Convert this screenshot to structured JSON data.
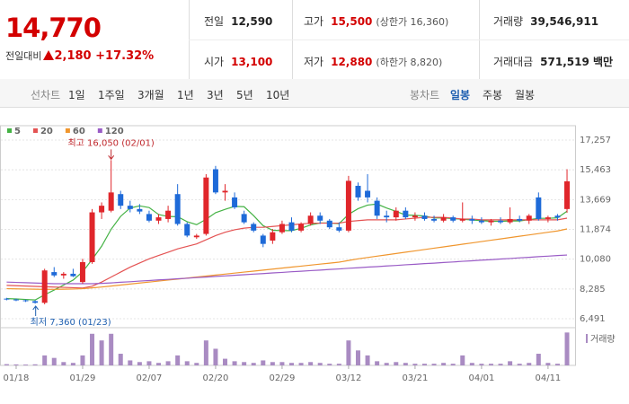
{
  "header": {
    "price": "14,770",
    "change_label": "전일대비",
    "change": "2,180",
    "change_pct": "+17.32%"
  },
  "stats": [
    {
      "label": "전일",
      "value": "12,590"
    },
    {
      "label": "고가",
      "value": "15,500",
      "extra": "(상한가 16,360)"
    },
    {
      "label": "거래량",
      "value": "39,546,911"
    },
    {
      "label": "시가",
      "value": "13,100"
    },
    {
      "label": "저가",
      "value": "12,880",
      "extra": "(하한가 8,820)"
    },
    {
      "label": "거래대금",
      "value": "571,519 백만"
    }
  ],
  "toolbar": {
    "line_label": "선차트",
    "line_options": [
      "1일",
      "1주일",
      "3개월",
      "1년",
      "3년",
      "5년",
      "10년"
    ],
    "candle_label": "봉차트",
    "candle_options": [
      "일봉",
      "주봉",
      "월봉"
    ],
    "selected": "일봉"
  },
  "chart_data": {
    "type": "candlestick",
    "categories": [
      null,
      "01/18",
      null,
      null,
      null,
      null,
      null,
      null,
      "01/29",
      null,
      null,
      null,
      null,
      null,
      null,
      "02/07",
      null,
      null,
      null,
      null,
      null,
      null,
      "02/20",
      null,
      null,
      null,
      null,
      null,
      null,
      "02/29",
      null,
      null,
      null,
      null,
      null,
      null,
      "03/12",
      null,
      null,
      null,
      null,
      null,
      null,
      "03/21",
      null,
      null,
      null,
      null,
      null,
      null,
      "04/01",
      null,
      null,
      null,
      null,
      null,
      null,
      "04/11",
      null,
      null
    ],
    "open": [
      7700,
      7650,
      7600,
      7550,
      7450,
      9300,
      9100,
      9200,
      8700,
      9900,
      12900,
      13000,
      14000,
      13300,
      13100,
      12800,
      12400,
      12500,
      14000,
      12200,
      11400,
      11600,
      15500,
      14100,
      13800,
      12800,
      12200,
      11500,
      11200,
      11700,
      12300,
      11800,
      12200,
      12700,
      12400,
      12000,
      11800,
      14500,
      14200,
      13600,
      12700,
      12600,
      13000,
      12600,
      12700,
      12500,
      12400,
      12600,
      12400,
      12500,
      12400,
      12300,
      12400,
      12300,
      12500,
      12400,
      13800,
      12500,
      12700,
      13100
    ],
    "high": [
      7750,
      7700,
      7650,
      7600,
      9500,
      9600,
      9300,
      9500,
      10100,
      13100,
      13500,
      16050,
      14200,
      13600,
      13400,
      13000,
      12800,
      13300,
      14600,
      12300,
      11600,
      15200,
      15700,
      14600,
      14100,
      13000,
      12300,
      11600,
      11900,
      12400,
      12600,
      12300,
      12900,
      12900,
      12500,
      12300,
      15100,
      14700,
      15200,
      13800,
      13000,
      13200,
      13200,
      12900,
      12900,
      12700,
      12800,
      12700,
      13500,
      12700,
      12600,
      12500,
      12600,
      13200,
      12700,
      12800,
      14100,
      12700,
      12800,
      15500
    ],
    "low": [
      7600,
      7550,
      7500,
      7400,
      7360,
      9000,
      8900,
      9000,
      8600,
      9800,
      12500,
      12900,
      13100,
      12900,
      12800,
      12300,
      12200,
      12300,
      12100,
      11400,
      11300,
      11500,
      14000,
      13600,
      13100,
      12200,
      11700,
      10800,
      11000,
      11600,
      11700,
      11700,
      12100,
      12200,
      11900,
      11700,
      11700,
      13600,
      13500,
      12500,
      12300,
      12400,
      12500,
      12400,
      12400,
      12300,
      12300,
      12300,
      12300,
      12200,
      12200,
      12100,
      12200,
      12200,
      12300,
      12200,
      12400,
      12300,
      12400,
      12880
    ],
    "close": [
      7650,
      7600,
      7550,
      7450,
      9400,
      9100,
      9200,
      9050,
      9900,
      12900,
      13300,
      14100,
      13300,
      13100,
      12950,
      12400,
      12600,
      13000,
      12200,
      11500,
      11500,
      15000,
      14100,
      14200,
      13200,
      12300,
      11800,
      11000,
      11700,
      12200,
      11800,
      12200,
      12700,
      12400,
      12000,
      11800,
      14800,
      13800,
      13800,
      12700,
      12600,
      13000,
      12600,
      12700,
      12500,
      12400,
      12600,
      12400,
      12500,
      12400,
      12300,
      12400,
      12300,
      12500,
      12400,
      12700,
      12500,
      12600,
      12590,
      14770
    ],
    "volume": [
      1500000,
      1200000,
      1000000,
      1300000,
      12000000,
      9000000,
      4000000,
      3000000,
      12000000,
      38000000,
      30000000,
      38000000,
      14000000,
      6000000,
      4000000,
      5000000,
      3000000,
      5000000,
      12000000,
      5000000,
      3000000,
      30000000,
      20000000,
      8000000,
      5000000,
      4000000,
      3000000,
      6000000,
      4000000,
      4000000,
      3000000,
      3000000,
      4000000,
      3000000,
      2000000,
      2000000,
      30000000,
      18000000,
      12000000,
      5000000,
      3000000,
      4000000,
      3000000,
      2000000,
      2000000,
      2000000,
      3000000,
      2000000,
      12000000,
      3000000,
      2000000,
      2000000,
      2000000,
      5000000,
      2000000,
      3000000,
      14000000,
      3000000,
      2000000,
      39546911
    ],
    "volume_label": "거래량",
    "volume_ylim": [
      0,
      41000000
    ],
    "series": [
      {
        "name": "5",
        "color": "#44b244",
        "values": [
          7700,
          7680,
          7650,
          7620,
          7930,
          8220,
          8520,
          8820,
          9320,
          10060,
          10860,
          11880,
          12660,
          13160,
          13290,
          13190,
          12770,
          12650,
          12640,
          12340,
          12160,
          12480,
          12880,
          13080,
          13260,
          13240,
          12700,
          12100,
          11820,
          11800,
          11800,
          11940,
          12140,
          12260,
          12260,
          12220,
          12780,
          13120,
          13340,
          13400,
          13160,
          12960,
          12740,
          12720,
          12680,
          12560,
          12560,
          12520,
          12480,
          12440,
          12400,
          12360,
          12360,
          12380,
          12380,
          12460,
          12540,
          12540,
          12570,
          12970
        ]
      },
      {
        "name": "20",
        "color": "#e45353",
        "values": [
          8500,
          8480,
          8460,
          8440,
          8420,
          8400,
          8380,
          8360,
          8340,
          8450,
          8700,
          9000,
          9300,
          9600,
          9850,
          10100,
          10300,
          10500,
          10700,
          10850,
          11000,
          11250,
          11500,
          11700,
          11850,
          11950,
          12000,
          12000,
          12050,
          12100,
          12150,
          12200,
          12250,
          12250,
          12250,
          12250,
          12350,
          12400,
          12450,
          12450,
          12450,
          12450,
          12500,
          12550,
          12600,
          12600,
          12600,
          12550,
          12500,
          12500,
          12450,
          12450,
          12450,
          12450,
          12450,
          12450,
          12450,
          12450,
          12450,
          12550
        ]
      },
      {
        "name": "60",
        "color": "#f0962e",
        "values": [
          8300,
          8290,
          8280,
          8270,
          8260,
          8260,
          8270,
          8280,
          8300,
          8350,
          8400,
          8460,
          8520,
          8580,
          8640,
          8700,
          8760,
          8820,
          8880,
          8940,
          9000,
          9060,
          9120,
          9180,
          9240,
          9300,
          9360,
          9420,
          9480,
          9540,
          9600,
          9660,
          9720,
          9780,
          9840,
          9900,
          10000,
          10100,
          10180,
          10260,
          10340,
          10420,
          10500,
          10580,
          10660,
          10740,
          10820,
          10900,
          10980,
          11060,
          11140,
          11220,
          11300,
          11380,
          11460,
          11540,
          11620,
          11700,
          11780,
          11900
        ]
      },
      {
        "name": "120",
        "color": "#9a5cc6",
        "values": [
          8700,
          8680,
          8660,
          8640,
          8620,
          8600,
          8600,
          8600,
          8600,
          8600,
          8620,
          8650,
          8690,
          8720,
          8760,
          8790,
          8830,
          8860,
          8900,
          8930,
          8970,
          9000,
          9040,
          9070,
          9110,
          9140,
          9180,
          9210,
          9250,
          9280,
          9320,
          9350,
          9390,
          9420,
          9460,
          9490,
          9530,
          9560,
          9600,
          9630,
          9670,
          9700,
          9740,
          9770,
          9810,
          9840,
          9880,
          9910,
          9950,
          9980,
          10020,
          10050,
          10090,
          10120,
          10160,
          10190,
          10230,
          10260,
          10300,
          10330
        ]
      }
    ],
    "up_color": "#e0262b",
    "down_color": "#1e6ad8",
    "ylim": [
      5950,
      17690
    ],
    "yticks": [
      {
        "value": 17257,
        "label": "17,257"
      },
      {
        "value": 15463,
        "label": "15,463"
      },
      {
        "value": 13669,
        "label": "13,669"
      },
      {
        "value": 11874,
        "label": "11,874"
      },
      {
        "value": 10080,
        "label": "10,080"
      },
      {
        "value": 8285,
        "label": "8,285"
      },
      {
        "value": 6491,
        "label": "6,491"
      }
    ],
    "grid": true,
    "annotations": [
      {
        "text": "최고 16,050 (02/01)",
        "index": 11,
        "color": "#c0282d"
      },
      {
        "text": "최저 7,360 (01/23)",
        "index": 4,
        "color": "#1e5fb0"
      }
    ]
  }
}
